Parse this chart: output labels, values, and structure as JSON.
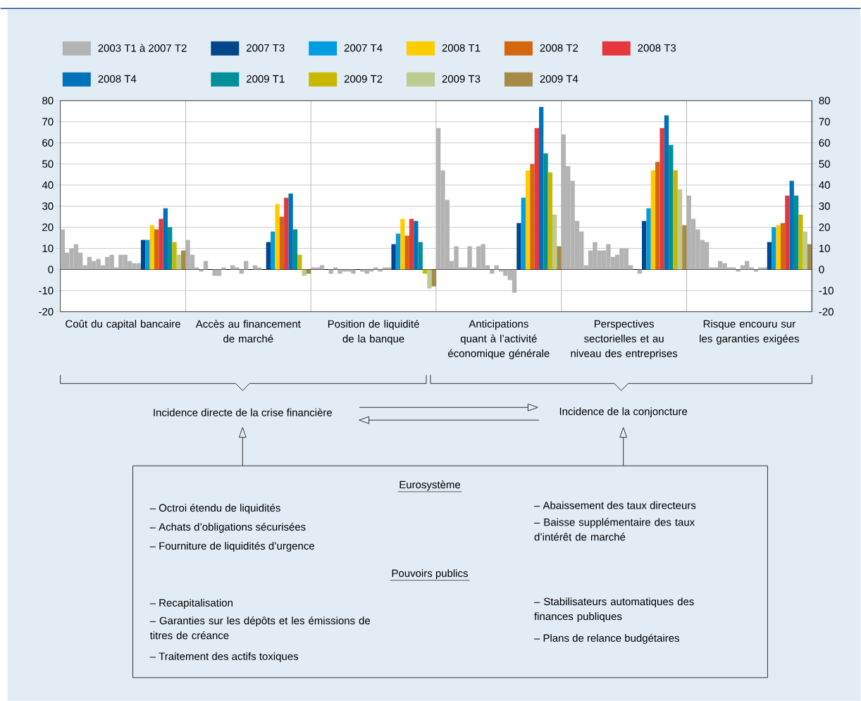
{
  "chart_data": {
    "type": "bar",
    "categories": [
      "Coût du capital bancaire",
      "Accès au financement de marché",
      "Position de liquidité de la banque",
      "Anticipations quant à l’activité économique générale",
      "Perspectives sectorielles et au niveau des entreprises",
      "Risque encouru sur les garanties exigées"
    ],
    "series": [
      {
        "name": "2003 T1 à 2007 T2",
        "color": "#b3b3b3",
        "values": [
          19,
          14,
          1,
          67,
          64,
          35
        ]
      },
      {
        "color": "#b3b3b3",
        "values": [
          8,
          7,
          1,
          47,
          49,
          24
        ]
      },
      {
        "color": "#b3b3b3",
        "values": [
          10,
          1,
          2,
          33,
          42,
          19
        ]
      },
      {
        "color": "#b3b3b3",
        "values": [
          12,
          -1,
          null,
          4,
          23,
          14
        ]
      },
      {
        "color": "#b3b3b3",
        "values": [
          8,
          4,
          -2,
          11,
          18,
          13
        ]
      },
      {
        "color": "#b3b3b3",
        "values": [
          2,
          null,
          1,
          1,
          2,
          1
        ]
      },
      {
        "color": "#b3b3b3",
        "values": [
          6,
          -3,
          -2,
          1,
          9,
          1
        ]
      },
      {
        "color": "#b3b3b3",
        "values": [
          4,
          -3,
          -1,
          11,
          13,
          4
        ]
      },
      {
        "color": "#b3b3b3",
        "values": [
          5,
          1,
          -1,
          1,
          9,
          3
        ]
      },
      {
        "color": "#b3b3b3",
        "values": [
          2,
          null,
          -2,
          11,
          9,
          1
        ]
      },
      {
        "color": "#b3b3b3",
        "values": [
          6,
          2,
          null,
          12,
          12,
          1
        ]
      },
      {
        "color": "#b3b3b3",
        "values": [
          7,
          1,
          -1,
          2,
          6,
          -1
        ]
      },
      {
        "color": "#b3b3b3",
        "values": [
          1,
          -2,
          -2,
          -2,
          7,
          2
        ]
      },
      {
        "color": "#b3b3b3",
        "values": [
          7,
          4,
          -1,
          2,
          10,
          4
        ]
      },
      {
        "color": "#b3b3b3",
        "values": [
          7,
          null,
          1,
          -1,
          10,
          1
        ]
      },
      {
        "color": "#b3b3b3",
        "values": [
          4,
          2,
          -1,
          -3,
          2,
          -1
        ]
      },
      {
        "color": "#b3b3b3",
        "values": [
          3,
          1,
          1,
          -5,
          null,
          1
        ]
      },
      {
        "color": "#b3b3b3",
        "values": [
          3,
          null,
          1,
          -11,
          -2,
          1
        ]
      },
      {
        "name": "2007 T3",
        "color": "#00468b",
        "values": [
          14,
          13,
          12,
          22,
          23,
          13
        ]
      },
      {
        "name": "2007 T4",
        "color": "#009de0",
        "values": [
          14,
          18,
          17,
          34,
          29,
          20
        ]
      },
      {
        "name": "2008 T1",
        "color": "#ffcc00",
        "values": [
          21,
          31,
          24,
          47,
          47,
          21
        ]
      },
      {
        "name": "2008 T2",
        "color": "#d4660e",
        "values": [
          19,
          25,
          16,
          50,
          51,
          22
        ]
      },
      {
        "name": "2008 T3",
        "color": "#e6373c",
        "values": [
          24,
          34,
          24,
          67,
          67,
          35
        ]
      },
      {
        "name": "2008 T4",
        "color": "#0072b9",
        "values": [
          29,
          36,
          23,
          77,
          73,
          42
        ]
      },
      {
        "name": "2009 T1",
        "color": "#00909a",
        "values": [
          20,
          19,
          13,
          55,
          59,
          35
        ]
      },
      {
        "name": "2009 T2",
        "color": "#c8b800",
        "values": [
          13,
          7,
          -2,
          46,
          47,
          26
        ]
      },
      {
        "name": "2009 T3",
        "color": "#bccb8f",
        "values": [
          7,
          -3,
          -9,
          26,
          38,
          18
        ]
      },
      {
        "name": "2009 T4",
        "color": "#a68b46",
        "values": [
          9,
          -2,
          -8,
          11,
          21,
          12
        ]
      }
    ],
    "ylim": [
      -20,
      80
    ],
    "yticks": [
      -20,
      -10,
      0,
      10,
      20,
      30,
      40,
      50,
      60,
      70,
      80
    ],
    "y2lim": [
      -20,
      80
    ],
    "y2ticks": [
      -20,
      -10,
      0,
      10,
      20,
      30,
      40,
      50,
      60,
      70,
      80
    ],
    "grid": true,
    "legend": "top",
    "annotations": [
      "Incidence directe de la crise financière",
      "Incidence de la conjoncture",
      "Eurosystème",
      "– Octroi étendu de liquidités",
      "– Achats d’obligations sécurisées",
      "– Fourniture de liquidités d’urgence",
      "– Abaissement des taux directeurs",
      "– Baisse supplémentaire des taux d’intérêt de marché",
      "Pouvoirs publics",
      "– Recapitalisation",
      "– Garanties sur les dépôts et les émissions de titres de créance",
      "– Traitement des actifs toxiques",
      "– Stabilisateurs automatiques des finances publiques",
      "– Plans de relance budgétaires"
    ]
  }
}
